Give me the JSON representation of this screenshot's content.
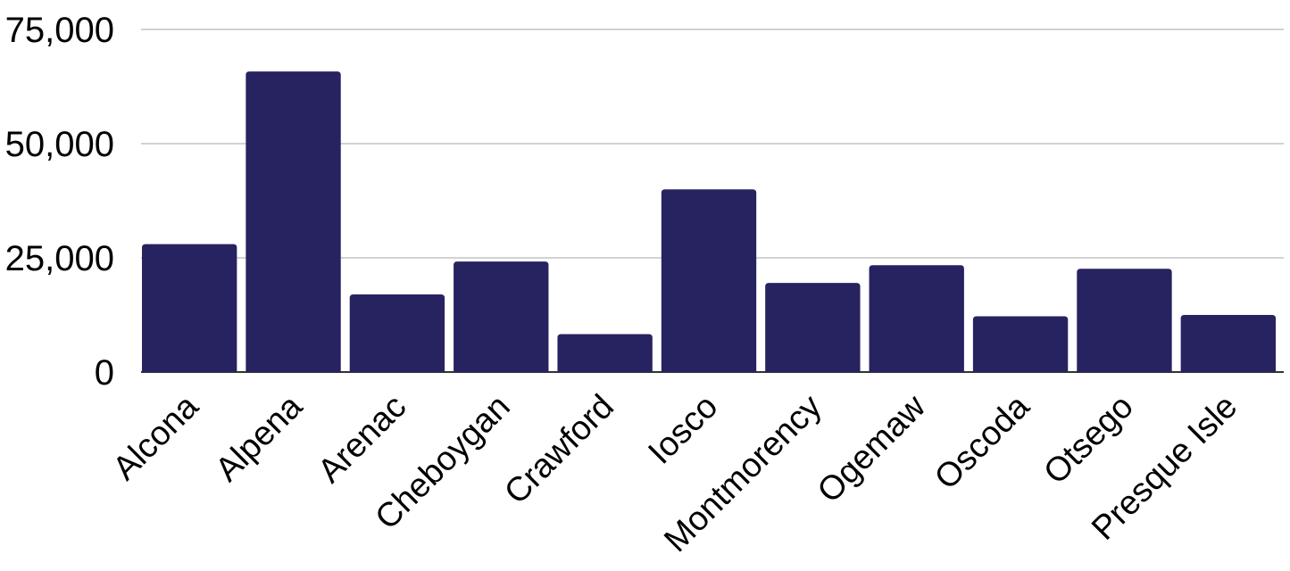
{
  "chart_data": {
    "type": "bar",
    "title": "",
    "xlabel": "",
    "ylabel": "",
    "categories": [
      "Alcona",
      "Alpena",
      "Arenac",
      "Cheboygan",
      "Crawford",
      "Iosco",
      "Montmorency",
      "Ogemaw",
      "Oscoda",
      "Otsego",
      "Presque Isle"
    ],
    "values": [
      28000,
      65800,
      17000,
      24200,
      8300,
      40000,
      19500,
      23400,
      12200,
      22600,
      12500
    ],
    "ylim": [
      0,
      75000
    ],
    "yticks": [
      0,
      25000,
      50000,
      75000
    ],
    "ytick_labels": [
      "0",
      "25,000",
      "50,000",
      "75,000"
    ],
    "grid": true,
    "legend": "none",
    "bar_color": "#272361",
    "grid_color": "#c4c4c4"
  }
}
